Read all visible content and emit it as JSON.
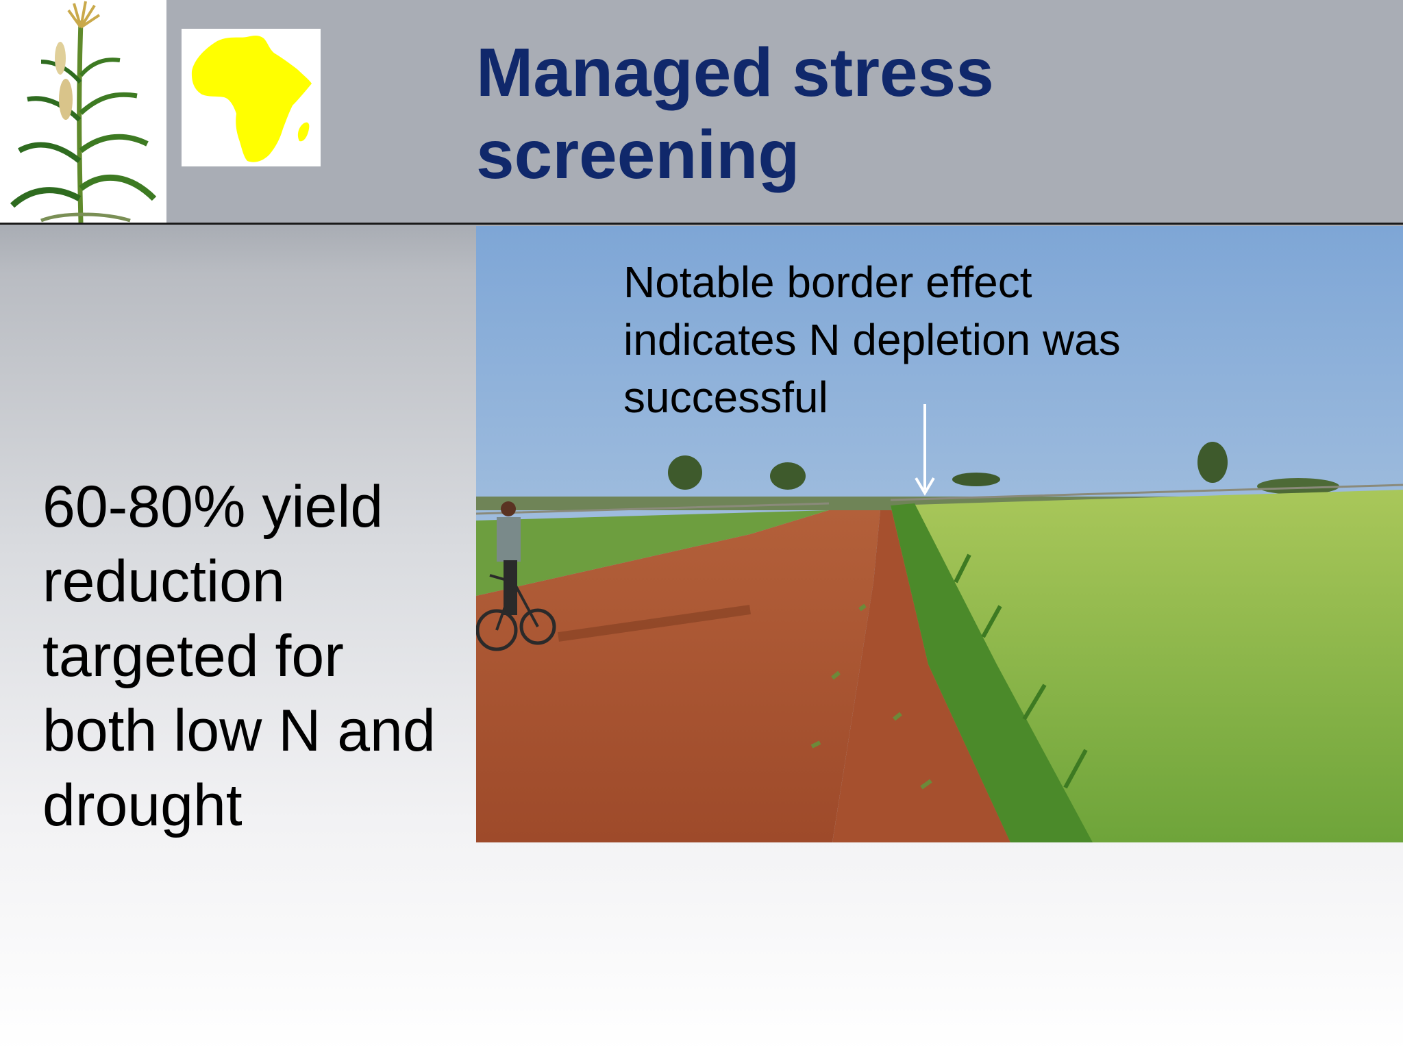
{
  "slide": {
    "title_line1": "Managed stress",
    "title_line2": "screening",
    "body_lines": [
      "60-80% yield",
      "reduction",
      "targeted for",
      "both low N and",
      "drought"
    ]
  },
  "photo": {
    "annotation_lines": [
      "Notable border effect",
      "indicates N depletion was",
      "successful"
    ]
  },
  "icons": {
    "logo_plant": "maize-plant-icon",
    "logo_map": "africa-map-icon",
    "arrow": "arrow-down-icon"
  },
  "colors": {
    "title": "#10286b",
    "header_band": "#a9adb5",
    "africa": "#ffff00"
  }
}
